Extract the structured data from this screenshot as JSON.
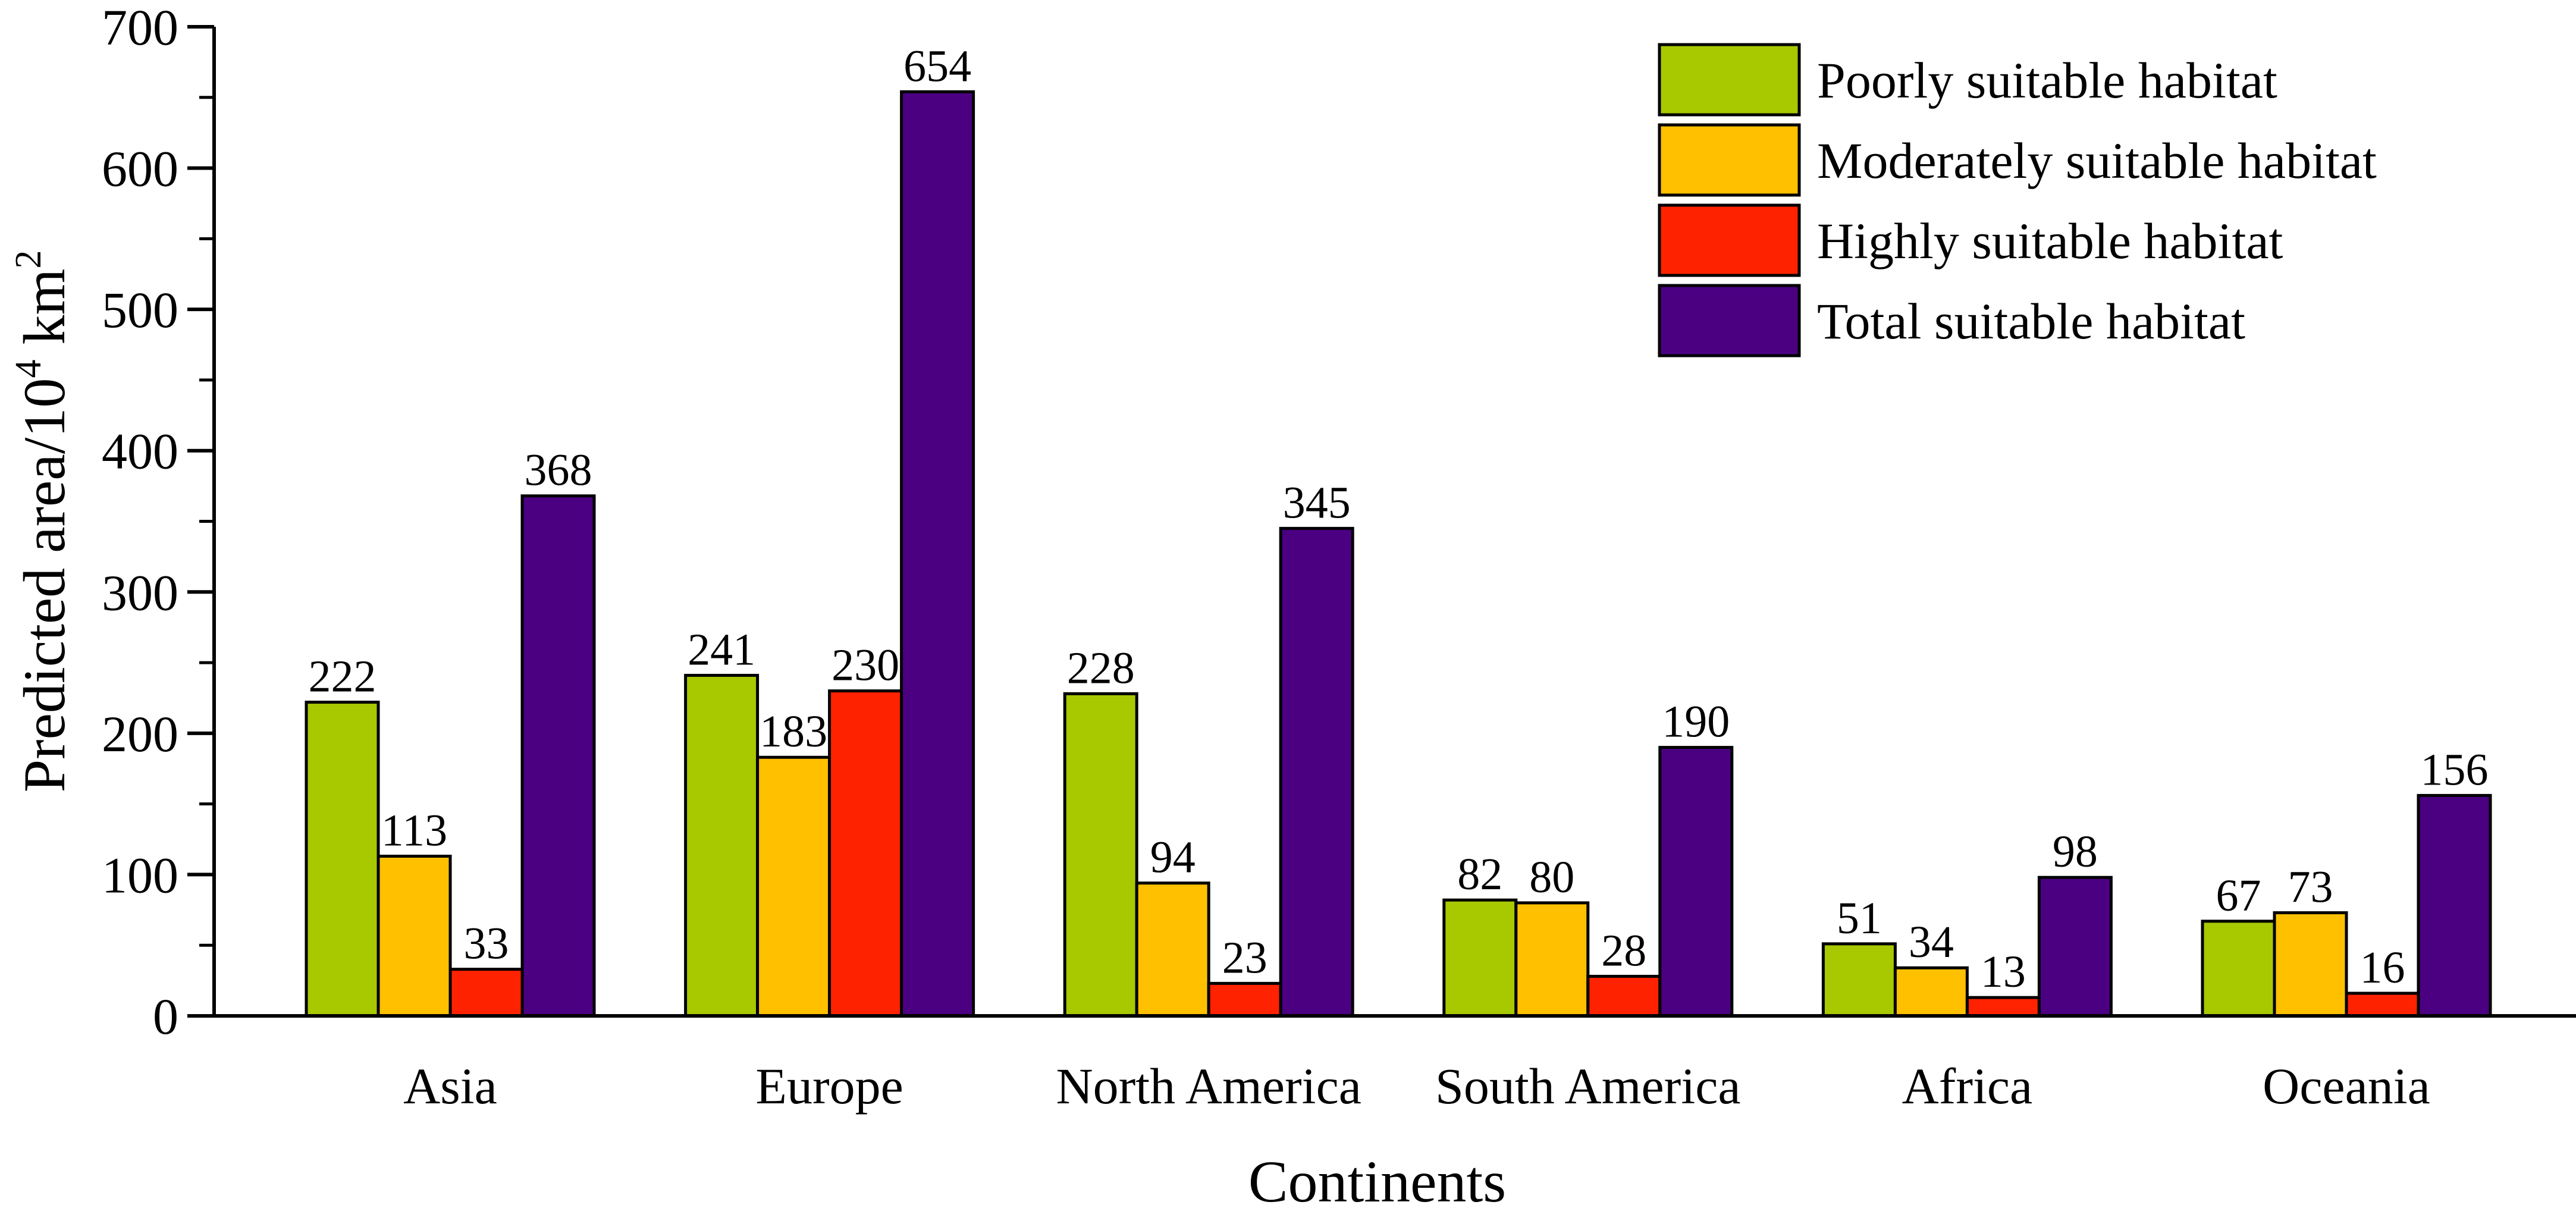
{
  "chart_data": {
    "type": "bar",
    "xlabel": "Continents",
    "ylabel_parts": {
      "base": "Predicted area/10",
      "exp1": "4",
      "unit": " km",
      "exp2": "2"
    },
    "ylim": [
      0,
      700
    ],
    "yticks": [
      0,
      100,
      200,
      300,
      400,
      500,
      600,
      700
    ],
    "categories": [
      "Asia",
      "Europe",
      "North America",
      "South America",
      "Africa",
      "Oceania"
    ],
    "series": [
      {
        "name": "Poorly suitable habitat",
        "color": "#A8C800",
        "values": [
          222,
          241,
          228,
          82,
          51,
          67
        ]
      },
      {
        "name": "Moderately suitable habitat",
        "color": "#FFC000",
        "values": [
          113,
          183,
          94,
          80,
          34,
          73
        ]
      },
      {
        "name": "Highly suitable habitat",
        "color": "#FF2200",
        "values": [
          33,
          230,
          23,
          28,
          13,
          16
        ]
      },
      {
        "name": "Total suitable habitat",
        "color": "#4B0082",
        "values": [
          368,
          654,
          345,
          190,
          98,
          156
        ]
      }
    ],
    "legend_position": "top-right",
    "grid": false
  }
}
